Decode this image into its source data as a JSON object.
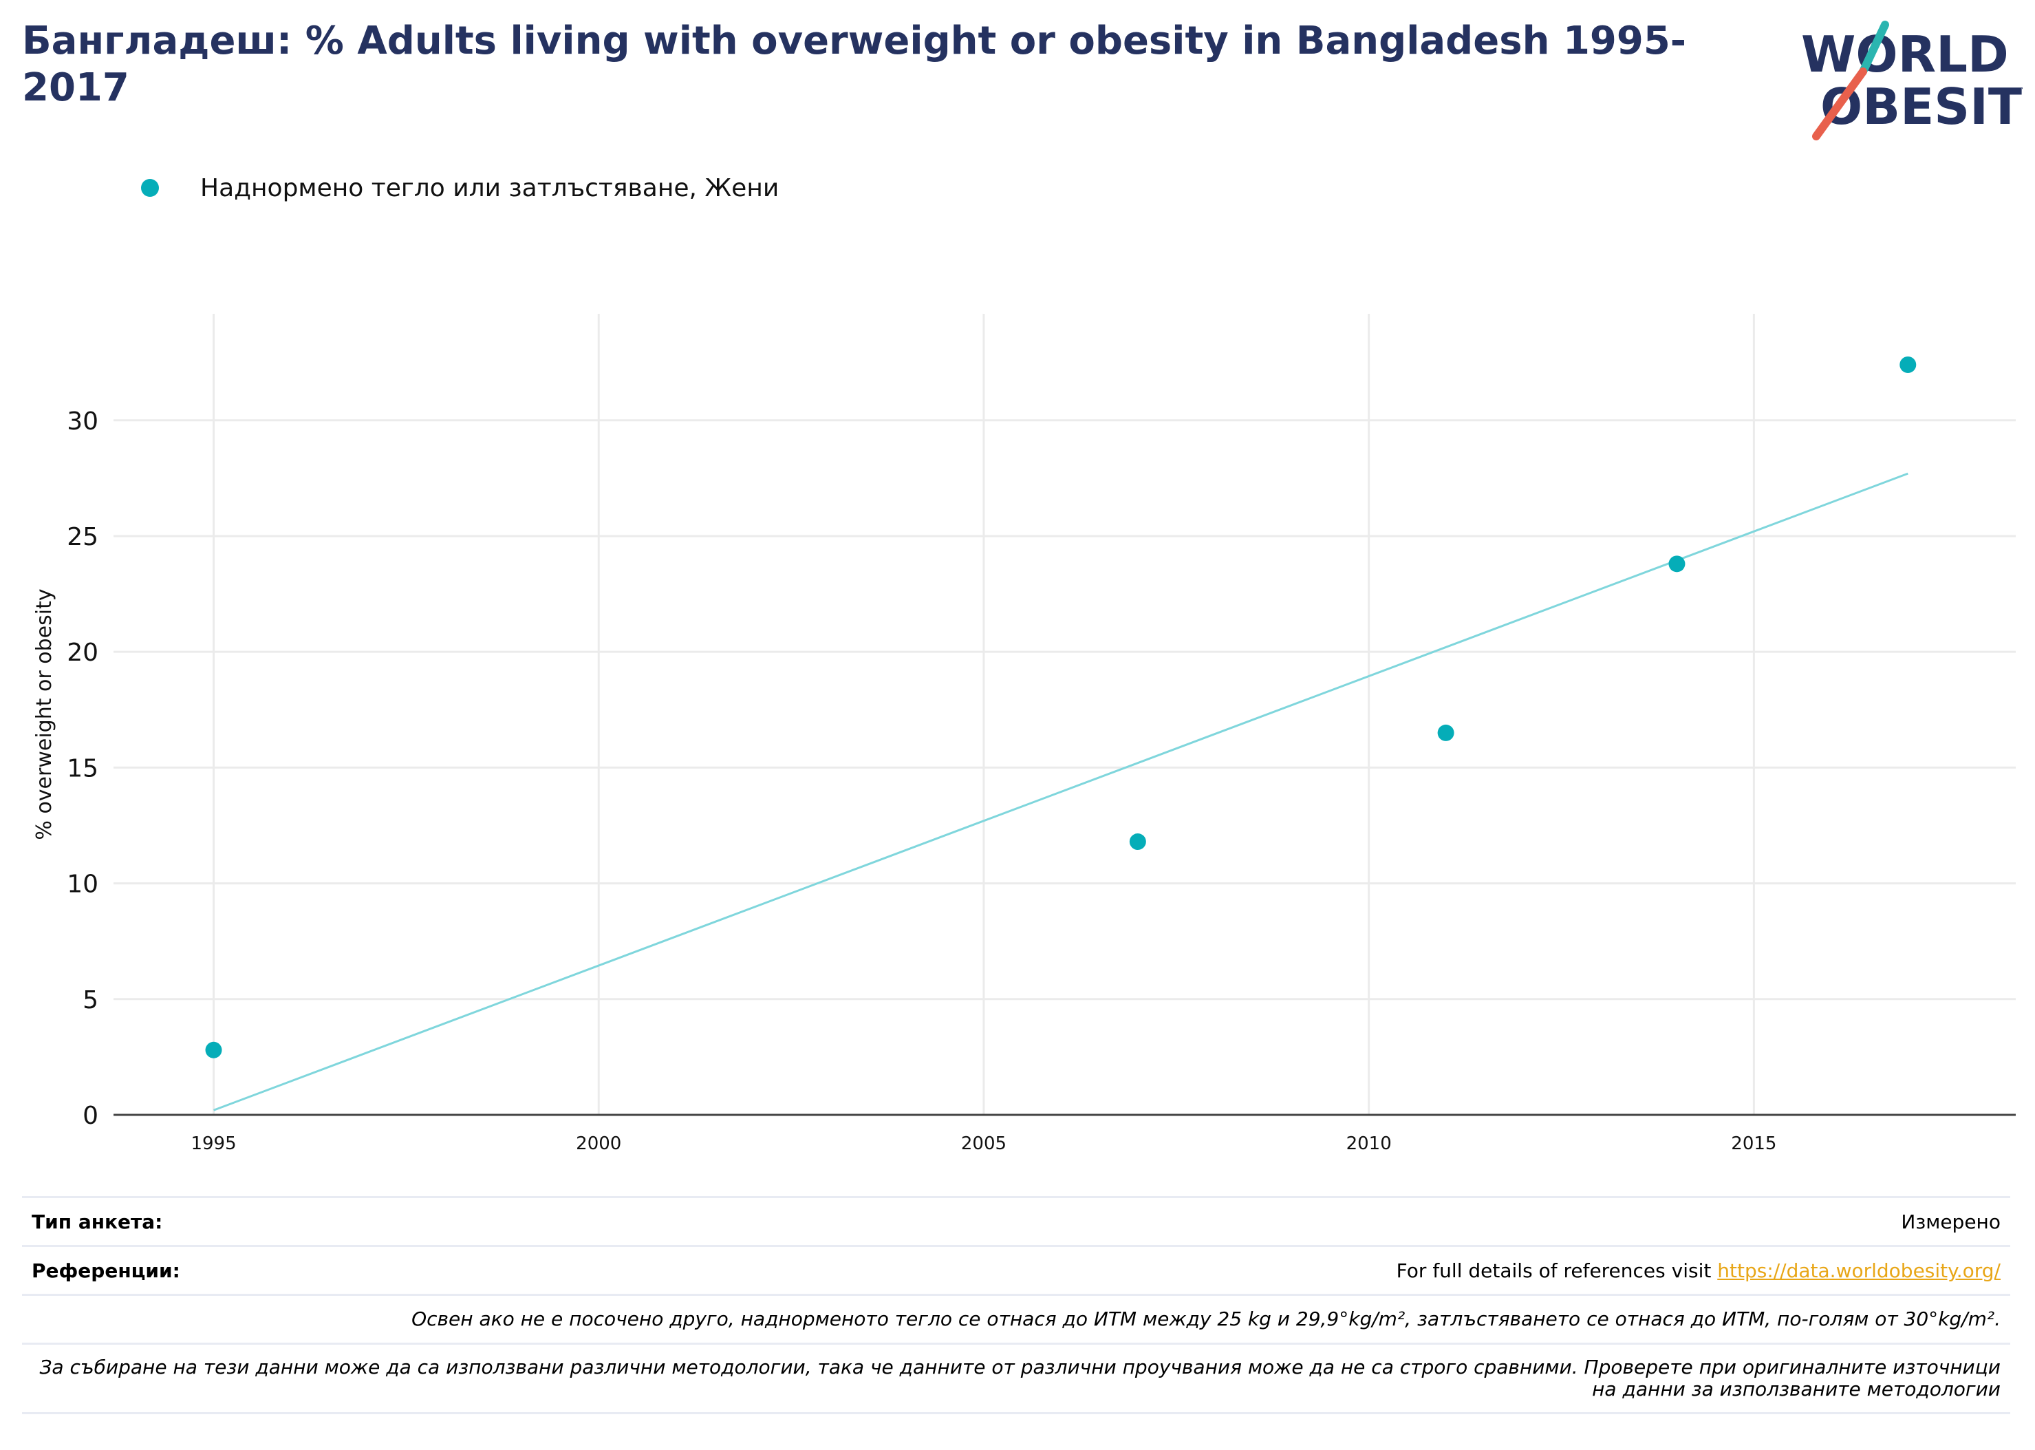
{
  "title": "Бангладеш: % Adults living with overweight or obesity in Bangladesh 1995-2017",
  "logo": {
    "line1": "WORLD",
    "line2": "OBESITY",
    "accent_teal": "#2bb5b0",
    "accent_red": "#e8604c",
    "color": "#253260"
  },
  "legend": {
    "label": "Наднормено тегло или затлъстяване, Жени",
    "color": "#05adb8"
  },
  "chart_data": {
    "type": "scatter",
    "ylabel": "% overweight or obesity",
    "xlabel": "",
    "xlim": [
      1993.7,
      2018.4
    ],
    "ylim": [
      0,
      34.6
    ],
    "x_ticks": [
      1995,
      2000,
      2005,
      2010,
      2015
    ],
    "y_ticks": [
      0,
      5,
      10,
      15,
      20,
      25,
      30
    ],
    "grid": true,
    "series": [
      {
        "name": "Наднормено тегло или затлъстяване, Жени",
        "color": "#05adb8",
        "x": [
          1995,
          2007,
          2011,
          2014,
          2017
        ],
        "y": [
          2.8,
          11.8,
          16.5,
          23.8,
          32.4
        ]
      }
    ],
    "trendline": {
      "color": "#7fd6dc",
      "x": [
        1995,
        2017
      ],
      "y": [
        0.2,
        27.7
      ]
    }
  },
  "footer": {
    "survey_type_label": "Тип анкета:",
    "survey_type_value": "Измерено",
    "references_label": "Референции:",
    "references_text": "For full details of references visit ",
    "references_link": "https://data.worldobesity.org/",
    "note1": "Освен ако не е посочено друго, наднорменото тегло се отнася до ИТМ между 25 kg и 29,9°kg/m², затлъстяването се отнася до ИТМ, по-голям от 30°kg/m².",
    "note2": "За събиране на тези данни може да са използвани различни методологии, така че данните от различни проучвания може да не са строго сравними. Проверете при оригиналните източници на данни за използваните методологии"
  }
}
